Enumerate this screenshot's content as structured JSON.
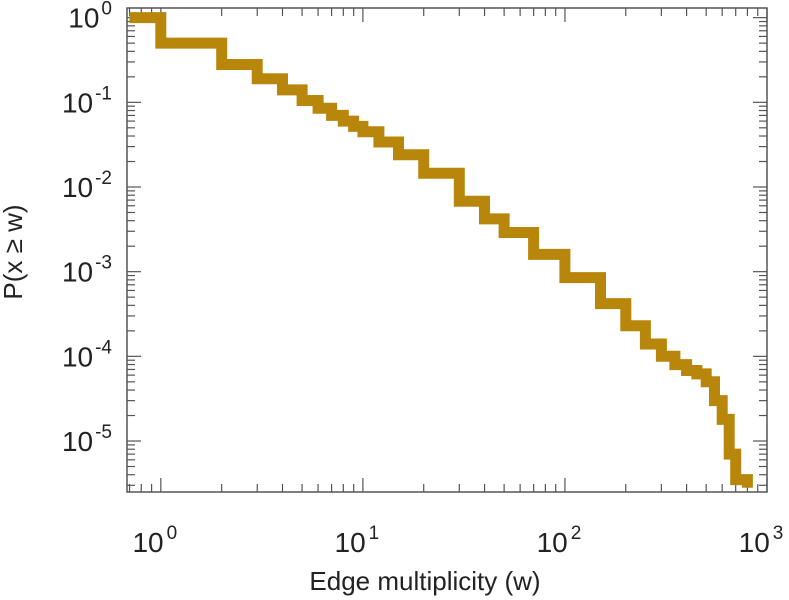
{
  "chart_data": {
    "type": "line",
    "title": "",
    "xlabel": "Edge multiplicity (w)",
    "ylabel": "P(x ≥ w)",
    "xscale": "log",
    "yscale": "log",
    "xlim": [
      0.68,
      1000
    ],
    "ylim": [
      2.5e-06,
      1.3
    ],
    "grid": false,
    "legend": "none",
    "xticks": [
      {
        "base": "10",
        "exp": "0",
        "value": 1
      },
      {
        "base": "10",
        "exp": "1",
        "value": 10
      },
      {
        "base": "10",
        "exp": "2",
        "value": 100
      },
      {
        "base": "10",
        "exp": "3",
        "value": 1000
      }
    ],
    "yticks": [
      {
        "base": "10",
        "exp": "0",
        "value": 1
      },
      {
        "base": "10",
        "exp": "-1",
        "value": 0.1
      },
      {
        "base": "10",
        "exp": "-2",
        "value": 0.01
      },
      {
        "base": "10",
        "exp": "-3",
        "value": 0.001
      },
      {
        "base": "10",
        "exp": "-4",
        "value": 0.0001
      },
      {
        "base": "10",
        "exp": "-5",
        "value": 1e-05
      }
    ],
    "series": [
      {
        "color": "#b8860b",
        "step": true,
        "x": [
          0.7,
          1,
          2,
          3,
          4,
          5,
          6,
          7,
          8,
          9,
          10,
          12,
          15,
          20,
          30,
          40,
          50,
          70,
          100,
          150,
          200,
          250,
          300,
          350,
          400,
          450,
          500,
          550,
          600,
          650,
          700,
          800
        ],
        "y": [
          1.0,
          0.5,
          0.28,
          0.19,
          0.14,
          0.105,
          0.085,
          0.07,
          0.06,
          0.052,
          0.045,
          0.034,
          0.024,
          0.0145,
          0.0068,
          0.0042,
          0.0029,
          0.0016,
          0.00085,
          0.00042,
          0.00023,
          0.00014,
          0.0001,
          8e-05,
          6.8e-05,
          6.2e-05,
          5e-05,
          3e-05,
          1.8e-05,
          7e-06,
          3.5e-06,
          2.8e-06
        ]
      }
    ]
  }
}
